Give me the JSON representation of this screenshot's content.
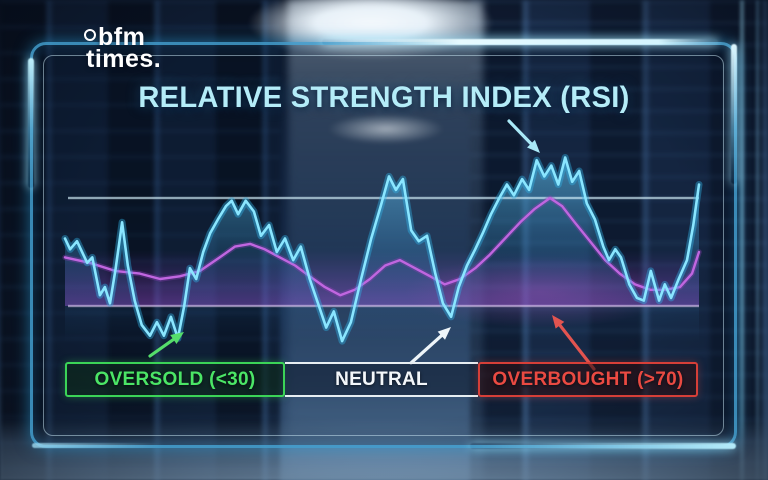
{
  "logo": {
    "icon": "bfm-globe-icon",
    "line1": "bfm",
    "line2": "times."
  },
  "title": "RELATIVE STRENGTH INDEX (RSI)",
  "zone_bar": {
    "segments": [
      {
        "id": "oversold",
        "label": "OVERSOLD (<30)",
        "text_color": "#4be566",
        "border_color": "#3bd457"
      },
      {
        "id": "neutral",
        "label": "NEUTRAL",
        "text_color": "#f3f7fa",
        "border_color": "#e7eef2"
      },
      {
        "id": "overbought",
        "label": "OVERBOUGHT (>70)",
        "text_color": "#ea4a42",
        "border_color": "#d63f38"
      }
    ]
  },
  "chart_data": {
    "type": "line",
    "title": "RELATIVE STRENGTH INDEX (RSI)",
    "ylim": [
      0,
      100
    ],
    "x_range_pct": [
      0,
      100
    ],
    "grid": false,
    "legend": "none",
    "thresholds": {
      "overbought": 70,
      "oversold": 30
    },
    "threshold_line_colors": {
      "overbought": "#d6f2fc",
      "oversold": "#dcc8f0"
    },
    "zone_fill_color": "#a44eda",
    "series": [
      {
        "name": "RSI",
        "color": "#8ae6ff",
        "glow": "#2fb4e8",
        "x": [
          0,
          0.8,
          1.9,
          3.5,
          4.3,
          5.5,
          6.3,
          7.1,
          8,
          9,
          9.9,
          11,
          12.1,
          13.4,
          14.5,
          15.6,
          16.7,
          17.8,
          18.8,
          19.7,
          20.7,
          21.8,
          22.9,
          24.1,
          25.4,
          26.3,
          27.3,
          28.5,
          29.8,
          30.9,
          32.2,
          33.4,
          34.7,
          36,
          37.2,
          38.6,
          39.9,
          41.2,
          42.4,
          43.7,
          45.1,
          46.7,
          48.3,
          49.8,
          51.1,
          52.2,
          53.3,
          54.6,
          55.8,
          57.1,
          58.4,
          59.6,
          60.9,
          62.1,
          63.4,
          64.7,
          65.9,
          67.2,
          68.5,
          69.7,
          70.8,
          72.1,
          73.2,
          74.4,
          75.6,
          76.7,
          77.8,
          78.9,
          80,
          81.1,
          82.3,
          83.6,
          84.9,
          85.8,
          86.8,
          87.7,
          89,
          90.2,
          91.3,
          92.4,
          93.7,
          94.6,
          95.6,
          96.8,
          98.1,
          99.1,
          100
        ],
        "values": [
          55,
          51,
          54,
          46,
          48,
          34,
          37,
          31,
          44,
          61,
          45,
          32,
          23,
          19,
          24,
          19,
          26,
          18,
          30,
          44,
          40,
          50,
          57,
          62,
          67,
          69,
          64,
          69,
          65,
          56,
          60,
          50,
          55,
          47,
          52,
          40,
          31,
          22,
          28,
          17,
          24,
          40,
          55,
          67,
          78,
          73,
          77,
          58,
          54,
          56,
          42,
          31,
          26,
          37,
          45,
          51,
          57,
          64,
          70,
          75,
          71,
          77,
          73,
          84,
          78,
          82,
          75,
          85,
          76,
          80,
          68,
          62,
          52,
          47,
          51,
          48,
          38,
          33,
          32,
          43,
          32,
          38,
          33,
          40,
          47,
          60,
          75
        ]
      },
      {
        "name": "Smoothed RSI",
        "color": "#c066e0",
        "glow": "#8b3bb4",
        "x": [
          0,
          3.9,
          7.9,
          11.8,
          15,
          18.1,
          21.3,
          24.4,
          26.8,
          29.2,
          31.5,
          33.9,
          36.3,
          38.6,
          41,
          43.4,
          45.7,
          48.1,
          50.5,
          52.8,
          55.2,
          57.6,
          59.9,
          62.3,
          64.7,
          67,
          69.4,
          71.8,
          74.1,
          76.5,
          78.4,
          80.4,
          82.8,
          85.2,
          87.5,
          89.9,
          92.3,
          94.6,
          97,
          98.9,
          100
        ],
        "values": [
          48,
          46,
          43,
          42,
          40,
          41,
          43,
          48,
          52,
          53,
          51,
          48,
          45,
          41,
          37,
          34,
          36,
          40,
          45,
          47,
          44,
          41,
          38,
          40,
          44,
          49,
          55,
          61,
          66,
          70,
          67,
          61,
          54,
          47,
          42,
          38,
          36,
          36,
          37,
          42,
          50
        ]
      }
    ],
    "annotations": [
      {
        "name": "overbought-peak-arrow",
        "color": "#a9e9f7",
        "from": [
          509,
          121
        ],
        "to": [
          540,
          153
        ]
      },
      {
        "name": "oversold-dip-arrow",
        "color": "#55dd6b",
        "from": [
          150,
          356
        ],
        "to": [
          184,
          332
        ]
      },
      {
        "name": "neutral-dip-arrow",
        "color": "#eef5f9",
        "from": [
          411,
          363
        ],
        "to": [
          451,
          327
        ]
      },
      {
        "name": "overbought-zone-arrow",
        "color": "#e25450",
        "from": [
          594,
          369
        ],
        "to": [
          552,
          315
        ]
      }
    ]
  }
}
